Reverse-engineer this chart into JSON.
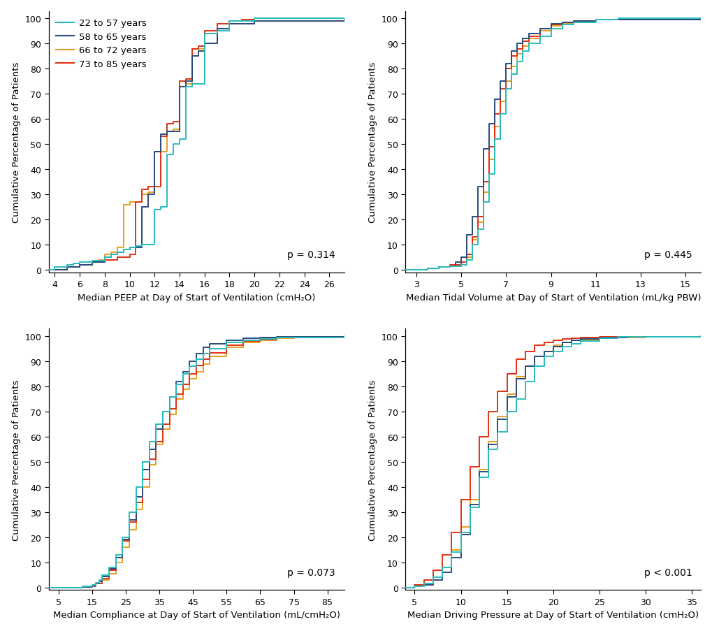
{
  "colors": {
    "cyan": "#29bcbe",
    "navy": "#2a4b7c",
    "orange": "#e8a020",
    "red": "#e03010"
  },
  "legend_labels": [
    "22 to 57 years",
    "58 to 65 years",
    "66 to 72 years",
    "73 to 85 years"
  ],
  "ylabel": "Cumulative Percentage of Patients",
  "xlabels": [
    "Median PEEP at Day of Start of Ventilation (cmH₂O)",
    "Median Tidal Volume at Day of Start of Ventilation (mL/kg PBW)",
    "Median Compliance at Day of Start of Ventilation (mL/cmH₂O)",
    "Median Driving Pressure at Day of Start of Ventilation (cmH₂O)"
  ],
  "pvalues": [
    "p = 0.314",
    "p = 0.445",
    "p = 0.073",
    "p < 0.001"
  ],
  "peep": {
    "xlim": [
      3.5,
      27.2
    ],
    "xticks": [
      4,
      6,
      8,
      10,
      12,
      14,
      16,
      18,
      20,
      22,
      24,
      26
    ],
    "series": {
      "cyan": {
        "x": [
          3.5,
          4,
          5,
          5.5,
          6,
          7,
          8,
          8.5,
          9,
          9.5,
          10,
          10.5,
          11,
          12,
          12.5,
          13,
          13.5,
          14,
          14.5,
          15,
          16,
          17,
          18,
          20,
          27.2
        ],
        "y": [
          0,
          1,
          2,
          2.5,
          3,
          3.5,
          5,
          6,
          7,
          8,
          9,
          9.5,
          10,
          24,
          25,
          46,
          50,
          52,
          73,
          74,
          94,
          95,
          99,
          100,
          100
        ]
      },
      "navy": {
        "x": [
          3.5,
          5,
          6,
          7,
          8,
          8.5,
          9,
          9.5,
          10,
          11,
          11.5,
          12,
          12.5,
          13,
          14,
          14.5,
          15,
          15.5,
          16,
          17,
          18,
          20,
          27.2
        ],
        "y": [
          0,
          1,
          2,
          3,
          5,
          6,
          7,
          8,
          9,
          25,
          30,
          47,
          54,
          55,
          73,
          75,
          85,
          87,
          90,
          96,
          98,
          99,
          100
        ]
      },
      "orange": {
        "x": [
          3.5,
          5,
          6,
          7,
          7.5,
          8,
          8.5,
          9,
          9.5,
          10,
          11,
          11.5,
          12,
          13,
          13.5,
          14,
          14.5,
          15,
          16,
          17,
          18,
          20,
          27.2
        ],
        "y": [
          0,
          1,
          2,
          3,
          4,
          6,
          7,
          9,
          26,
          27,
          30,
          31,
          47,
          55,
          56,
          73,
          74,
          88,
          90,
          96,
          98,
          99,
          100
        ]
      },
      "red": {
        "x": [
          3.5,
          4,
          5,
          6,
          7,
          8,
          9,
          10,
          10.5,
          11,
          11.5,
          12,
          12.5,
          13,
          13.5,
          14,
          14.5,
          15,
          15.5,
          16,
          17,
          18,
          19,
          20,
          27.2
        ],
        "y": [
          0,
          0,
          1,
          2,
          3,
          4,
          5,
          6,
          27,
          32,
          33,
          33,
          53,
          58,
          59,
          75,
          76,
          88,
          89,
          95,
          98,
          99,
          99.5,
          100,
          100
        ]
      }
    }
  },
  "tv": {
    "xlim": [
      2.5,
      15.7
    ],
    "xticks": [
      3,
      5,
      7,
      9,
      11,
      13,
      15
    ],
    "series": {
      "cyan": {
        "x": [
          2.5,
          3.5,
          4,
          4.5,
          5,
          5.25,
          5.5,
          5.75,
          6,
          6.25,
          6.5,
          6.75,
          7,
          7.25,
          7.5,
          7.75,
          8,
          8.5,
          9,
          9.5,
          10,
          11,
          12,
          15.7
        ],
        "y": [
          0,
          0.5,
          1,
          1.5,
          2,
          4,
          10,
          16,
          27,
          38,
          52,
          62,
          72,
          78,
          83,
          87,
          90,
          93,
          96,
          97.5,
          98.5,
          99.5,
          100,
          100
        ]
      },
      "navy": {
        "x": [
          2.5,
          3.5,
          4,
          4.5,
          4.75,
          5,
          5.25,
          5.5,
          5.75,
          6,
          6.25,
          6.5,
          6.75,
          7,
          7.25,
          7.5,
          7.75,
          8,
          8.5,
          9,
          9.5,
          10,
          11,
          15.7
        ],
        "y": [
          0,
          0.5,
          1,
          1.5,
          3,
          5,
          14,
          21,
          33,
          48,
          58,
          68,
          75,
          82,
          87,
          90,
          92,
          94,
          96,
          98,
          98.5,
          99,
          99.5,
          100
        ]
      },
      "orange": {
        "x": [
          2.5,
          3.5,
          4,
          4.5,
          5,
          5.25,
          5.5,
          5.75,
          6,
          6.25,
          6.5,
          6.75,
          7,
          7.25,
          7.5,
          7.75,
          8,
          8.5,
          9,
          9.5,
          10,
          11,
          15.7
        ],
        "y": [
          0,
          0.5,
          1,
          1.5,
          2,
          5,
          12,
          19,
          31,
          44,
          57,
          67,
          75,
          81,
          86,
          89,
          92,
          95,
          97,
          98,
          99,
          99.5,
          100
        ]
      },
      "red": {
        "x": [
          2.5,
          3.5,
          4,
          4.5,
          5,
          5.25,
          5.5,
          5.75,
          6,
          6.25,
          6.5,
          6.75,
          7,
          7.25,
          7.5,
          7.75,
          8,
          8.5,
          9,
          9.5,
          10,
          11,
          15.7
        ],
        "y": [
          0,
          0.5,
          1,
          2,
          3,
          6,
          13,
          21,
          35,
          49,
          62,
          72,
          80,
          85,
          88,
          91,
          93,
          96,
          97.5,
          98.5,
          99,
          99.5,
          100
        ]
      }
    }
  },
  "compliance": {
    "xlim": [
      2.0,
      90.0
    ],
    "xticks": [
      5,
      15,
      25,
      35,
      45,
      55,
      65,
      75,
      85
    ],
    "series": {
      "cyan": {
        "x": [
          2,
          12,
          15,
          16,
          17,
          18,
          20,
          22,
          24,
          26,
          28,
          30,
          32,
          34,
          36,
          38,
          40,
          42,
          44,
          46,
          48,
          50,
          55,
          60,
          65,
          70,
          90
        ],
        "y": [
          0,
          0.5,
          1,
          2,
          3,
          5,
          8,
          13,
          20,
          30,
          40,
          50,
          58,
          65,
          70,
          76,
          81,
          85,
          88,
          91,
          93,
          95,
          97.5,
          98.5,
          99,
          99.5,
          100
        ]
      },
      "navy": {
        "x": [
          2,
          12,
          15,
          16,
          17,
          18,
          20,
          22,
          24,
          26,
          28,
          30,
          32,
          34,
          36,
          38,
          40,
          42,
          44,
          46,
          48,
          50,
          55,
          60,
          65,
          70,
          90
        ],
        "y": [
          0,
          0.3,
          0.8,
          1.5,
          2.5,
          4.5,
          7.5,
          12,
          19,
          27,
          36,
          47,
          55,
          63,
          70,
          76,
          82,
          86,
          90,
          93,
          95.5,
          97,
          98.5,
          99.2,
          99.6,
          99.9,
          100
        ]
      },
      "orange": {
        "x": [
          2,
          12,
          15,
          16,
          18,
          20,
          22,
          24,
          26,
          28,
          30,
          32,
          34,
          36,
          38,
          40,
          42,
          44,
          46,
          48,
          50,
          55,
          60,
          65,
          70,
          75,
          90
        ],
        "y": [
          0,
          0.3,
          0.8,
          1.5,
          3,
          5.5,
          10,
          16,
          23,
          31,
          40,
          49,
          57,
          63,
          69,
          75,
          79,
          83,
          86,
          89,
          92,
          95.5,
          97.5,
          98.5,
          99.2,
          99.7,
          100
        ]
      },
      "red": {
        "x": [
          2,
          12,
          15,
          16,
          18,
          20,
          22,
          24,
          26,
          28,
          30,
          32,
          34,
          36,
          38,
          40,
          42,
          44,
          46,
          48,
          50,
          55,
          60,
          65,
          70,
          90
        ],
        "y": [
          0,
          0.3,
          0.5,
          1.5,
          3.5,
          7,
          12,
          18.5,
          26,
          34,
          43,
          51,
          58,
          65,
          71,
          77,
          81,
          85,
          88.5,
          91,
          93.5,
          96.5,
          98,
          98.8,
          99.5,
          100
        ]
      }
    }
  },
  "dp": {
    "xlim": [
      4.0,
      36.0
    ],
    "xticks": [
      5,
      10,
      15,
      20,
      25,
      30,
      35
    ],
    "series": {
      "cyan": {
        "x": [
          4,
          5,
          6,
          7,
          8,
          9,
          10,
          11,
          12,
          13,
          14,
          15,
          16,
          17,
          18,
          19,
          20,
          21,
          22,
          23,
          25,
          27,
          36
        ],
        "y": [
          0,
          0.5,
          1.5,
          4,
          8,
          14,
          22,
          32,
          44,
          55,
          62,
          70,
          75,
          82,
          88,
          92,
          94,
          96,
          97,
          98,
          99.2,
          99.7,
          100
        ]
      },
      "navy": {
        "x": [
          4,
          5,
          6,
          7,
          8,
          9,
          10,
          11,
          12,
          13,
          14,
          15,
          16,
          17,
          18,
          19,
          20,
          21,
          22,
          23,
          25,
          28,
          36
        ],
        "y": [
          0,
          0.5,
          1,
          3,
          6,
          12,
          21,
          33,
          46,
          57,
          67,
          76,
          83,
          88,
          92,
          94,
          96,
          97.5,
          98.5,
          99,
          99.5,
          99.8,
          100
        ]
      },
      "orange": {
        "x": [
          4,
          5,
          6,
          7,
          8,
          9,
          10,
          11,
          12,
          13,
          14,
          15,
          16,
          17,
          18,
          19,
          20,
          21,
          22,
          25,
          30,
          36
        ],
        "y": [
          0,
          0.5,
          1.5,
          4,
          8,
          15,
          24,
          35,
          47,
          58,
          68,
          77,
          84,
          88,
          92,
          94,
          96.5,
          97.5,
          98.5,
          99.5,
          99.8,
          100
        ]
      },
      "red": {
        "x": [
          4,
          5,
          6,
          7,
          8,
          9,
          10,
          11,
          12,
          13,
          14,
          15,
          16,
          17,
          18,
          19,
          20,
          21,
          22,
          23,
          25,
          36
        ],
        "y": [
          0,
          1,
          3,
          7,
          13,
          22,
          35,
          48,
          60,
          70,
          78,
          85,
          91,
          94,
          96.5,
          97.5,
          98.5,
          99,
          99.3,
          99.6,
          99.9,
          100
        ]
      }
    }
  }
}
